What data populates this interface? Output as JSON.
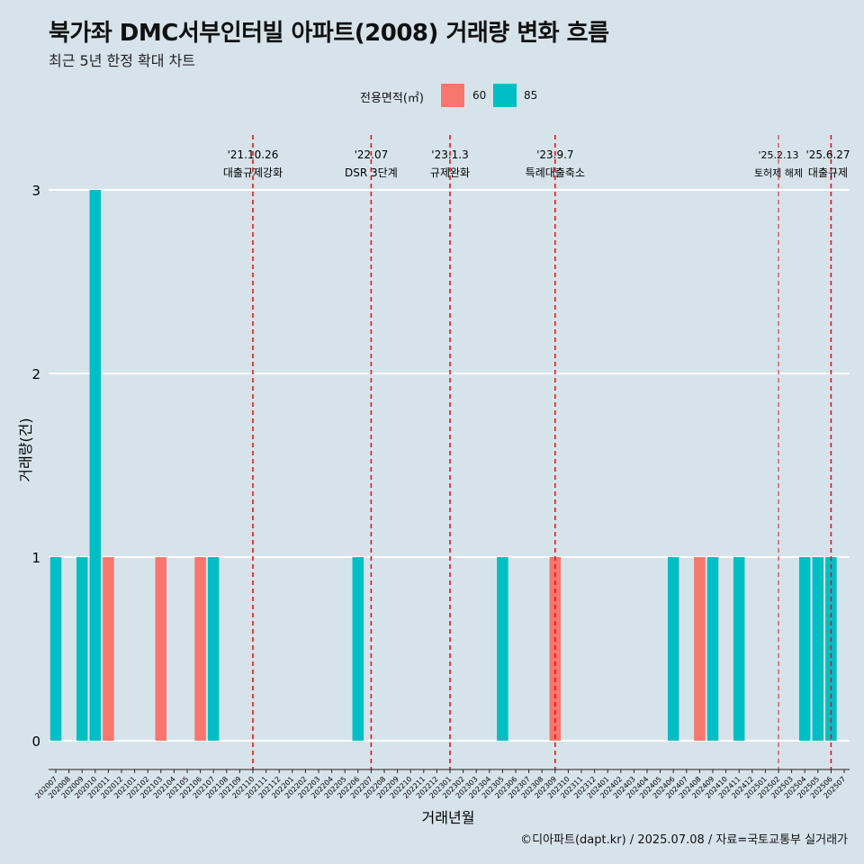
{
  "header": {
    "title": "북가좌 DMC서부인터빌 아파트(2008) 거래량 변화 흐름",
    "subtitle": "최근 5년 한정 확대 차트"
  },
  "legend": {
    "title": "전용면적(㎡)",
    "items": [
      {
        "label": "60",
        "color": "#F8766D"
      },
      {
        "label": "85",
        "color": "#00BFC4"
      }
    ]
  },
  "caption": "©디아파트(dapt.kr) / 2025.07.08 / 자료=국토교통부 실거래가",
  "chart_data": {
    "type": "bar",
    "xlabel": "거래년월",
    "ylabel": "거래량(건)",
    "ylim": [
      0,
      3
    ],
    "yticks": [
      0,
      1,
      2,
      3
    ],
    "grid": true,
    "legend_position": "top",
    "categories": [
      "202007",
      "202008",
      "202009",
      "202010",
      "202011",
      "202012",
      "202101",
      "202102",
      "202103",
      "202104",
      "202105",
      "202106",
      "202107",
      "202108",
      "202109",
      "202110",
      "202111",
      "202112",
      "202201",
      "202202",
      "202203",
      "202204",
      "202205",
      "202206",
      "202207",
      "202208",
      "202209",
      "202210",
      "202211",
      "202212",
      "202301",
      "202302",
      "202303",
      "202304",
      "202305",
      "202306",
      "202307",
      "202308",
      "202309",
      "202310",
      "202311",
      "202312",
      "202401",
      "202402",
      "202403",
      "202404",
      "202405",
      "202406",
      "202407",
      "202408",
      "202409",
      "202410",
      "202411",
      "202412",
      "202501",
      "202502",
      "202503",
      "202504",
      "202505",
      "202506",
      "202507"
    ],
    "bars": [
      {
        "month": "202007",
        "area": "85",
        "value": 1
      },
      {
        "month": "202009",
        "area": "85",
        "value": 1
      },
      {
        "month": "202010",
        "area": "85",
        "value": 3
      },
      {
        "month": "202011",
        "area": "60",
        "value": 1
      },
      {
        "month": "202103",
        "area": "60",
        "value": 1
      },
      {
        "month": "202106",
        "area": "60",
        "value": 1
      },
      {
        "month": "202107",
        "area": "85",
        "value": 1
      },
      {
        "month": "202206",
        "area": "85",
        "value": 1
      },
      {
        "month": "202305",
        "area": "85",
        "value": 1
      },
      {
        "month": "202309",
        "area": "60",
        "value": 1
      },
      {
        "month": "202406",
        "area": "85",
        "value": 1
      },
      {
        "month": "202408",
        "area": "60",
        "value": 1
      },
      {
        "month": "202409",
        "area": "85",
        "value": 1
      },
      {
        "month": "202411",
        "area": "85",
        "value": 1
      },
      {
        "month": "202504",
        "area": "85",
        "value": 1
      },
      {
        "month": "202505",
        "area": "85",
        "value": 1
      },
      {
        "month": "202506",
        "area": "85",
        "value": 1
      }
    ],
    "events": [
      {
        "month": "202110",
        "date": "'21.10.26",
        "label": "대출규제강화",
        "small": false
      },
      {
        "month": "202207",
        "date": "'22.07",
        "label": "DSR 3단계",
        "small": false
      },
      {
        "month": "202301",
        "date": "'23.1.3",
        "label": "규제완화",
        "small": false
      },
      {
        "month": "202309",
        "date": "'23.9.7",
        "label": "특례대출축소",
        "small": false
      },
      {
        "month": "202502",
        "date": "'25.2.13",
        "label": "토허제 해제",
        "small": true
      },
      {
        "month": "202506",
        "date": "'25.6.27",
        "label": "대출규제",
        "small": false
      }
    ]
  }
}
